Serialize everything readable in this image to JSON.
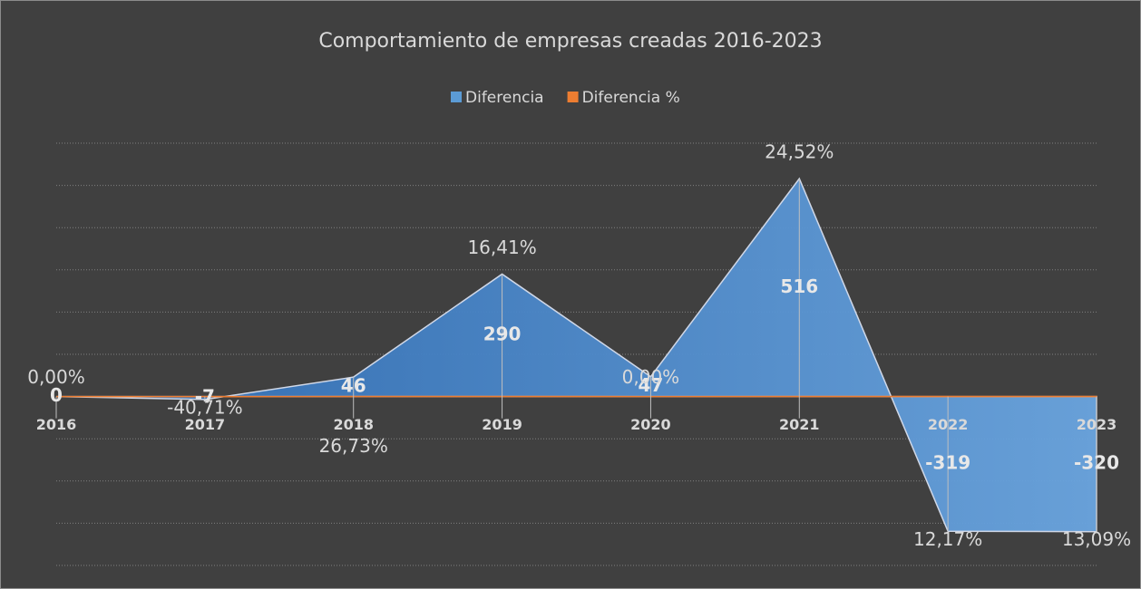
{
  "chart_data": {
    "type": "area",
    "title": "Comportamiento de empresas creadas 2016-2023",
    "categories": [
      "2016",
      "2017",
      "2018",
      "2019",
      "2020",
      "2021",
      "2022",
      "2023"
    ],
    "series": [
      {
        "name": "Diferencia",
        "color": "#5b9bd5",
        "values": [
          0,
          -7,
          46,
          290,
          47,
          516,
          -319,
          -320
        ]
      },
      {
        "name": "Diferencia %",
        "color": "#ed7d31",
        "values": [
          0,
          -0.4071,
          0.2673,
          0.1641,
          0,
          0.2452,
          0.1217,
          0.1309
        ],
        "value_labels": [
          "0,00%",
          "-40,71%",
          "26,73%",
          "16,41%",
          "0,00%",
          "24,52%",
          "12,17%",
          "13,09%"
        ]
      }
    ],
    "ylim": [
      -400,
      600
    ],
    "yticks": [
      -400,
      -300,
      -200,
      -100,
      0,
      100,
      200,
      300,
      400,
      500,
      600
    ],
    "grid": true,
    "legend": "top"
  }
}
